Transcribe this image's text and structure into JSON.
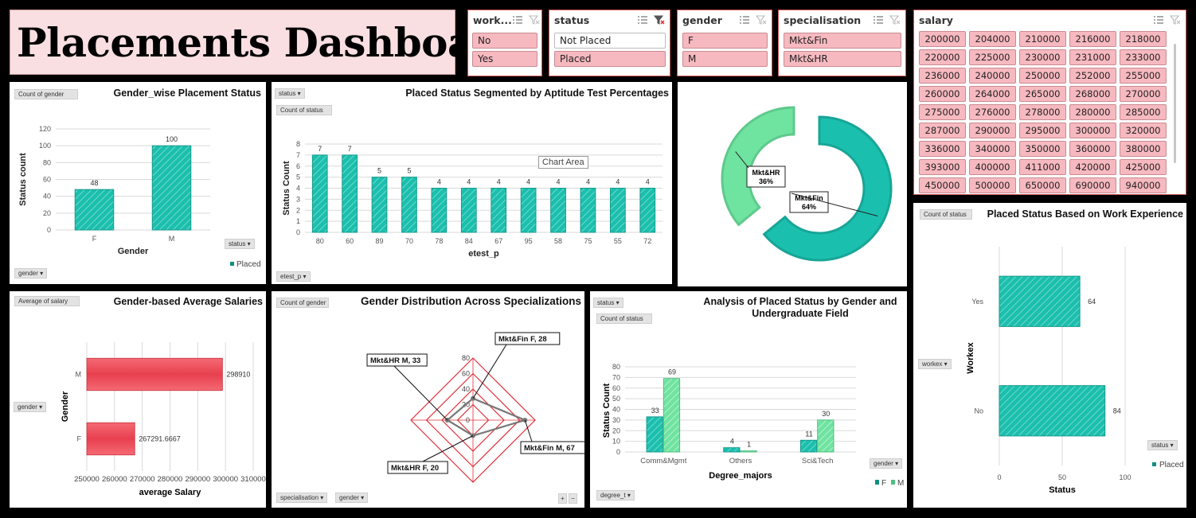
{
  "dashboard": {
    "title": "Placements Dashboard"
  },
  "colors": {
    "teal": "#1bbfad",
    "light_green": "#6fe3a0",
    "red": "#e8404e",
    "slicer_pink": "#f7b9c0",
    "grid": "#d9d9d9"
  },
  "slicers": {
    "workex": {
      "label": "work...",
      "items": [
        "No",
        "Yes"
      ]
    },
    "status": {
      "label": "status",
      "items": [
        "Not Placed",
        "Placed"
      ]
    },
    "gender": {
      "label": "gender",
      "items": [
        "F",
        "M"
      ]
    },
    "specialisation": {
      "label": "specialisation",
      "items": [
        "Mkt&Fin",
        "Mkt&HR"
      ]
    },
    "salary": {
      "label": "salary",
      "items": [
        "200000",
        "204000",
        "210000",
        "216000",
        "218000",
        "220000",
        "225000",
        "230000",
        "231000",
        "233000",
        "236000",
        "240000",
        "250000",
        "252000",
        "255000",
        "260000",
        "264000",
        "265000",
        "268000",
        "270000",
        "275000",
        "276000",
        "278000",
        "280000",
        "285000",
        "287000",
        "290000",
        "295000",
        "300000",
        "320000",
        "336000",
        "340000",
        "350000",
        "360000",
        "380000",
        "393000",
        "400000",
        "411000",
        "420000",
        "425000",
        "450000",
        "500000",
        "650000",
        "690000",
        "940000"
      ]
    }
  },
  "charts": {
    "gender_status": {
      "title": "Gender_wise Placement Status",
      "value_tag": "Count of gender",
      "filter_tag": "status",
      "axis_tag": "gender",
      "chart_data": {
        "type": "bar",
        "categories": [
          "F",
          "M"
        ],
        "values": [
          48,
          100
        ],
        "xlabel": "Gender",
        "ylabel": "Status count",
        "ylim": [
          0,
          120
        ],
        "yticks": [
          "0",
          "20",
          "40",
          "60",
          "80",
          "100",
          "120"
        ],
        "legend": "Placed"
      }
    },
    "aptitude": {
      "title": "Placed Status Segmented by Aptitude Test Percentages",
      "filter_tag": "status",
      "value_tag": "Count of status",
      "axis_tag": "etest_p",
      "tooltip": "Chart Area",
      "chart_data": {
        "type": "bar",
        "categories": [
          "80",
          "60",
          "89",
          "70",
          "78",
          "84",
          "67",
          "95",
          "58",
          "75",
          "55",
          "72"
        ],
        "values": [
          7,
          7,
          5,
          5,
          4,
          4,
          4,
          4,
          4,
          4,
          4,
          4
        ],
        "xlabel": "etest_p",
        "ylabel": "Status Count",
        "ylim": [
          0,
          8
        ],
        "yticks": [
          "0",
          "1",
          "2",
          "3",
          "4",
          "5",
          "6",
          "7",
          "8"
        ]
      }
    },
    "specialisation_donut": {
      "chart_data": {
        "type": "pie",
        "categories": [
          "Mkt&HR",
          "Mkt&Fin"
        ],
        "values": [
          36,
          64
        ],
        "labels": [
          "36%",
          "64%"
        ]
      }
    },
    "workex_status": {
      "title": "Placed Status Based on Work Experience",
      "value_tag": "Count of status",
      "axis_tag": "workex",
      "filter_tag": "status",
      "chart_data": {
        "type": "bar",
        "orientation": "horizontal",
        "categories": [
          "Yes",
          "No"
        ],
        "values": [
          64,
          84
        ],
        "xlabel": "Status",
        "ylabel": "Workex",
        "xlim": [
          0,
          100
        ],
        "xticks": [
          "0",
          "50",
          "100"
        ],
        "legend": "Placed"
      }
    },
    "avg_salary": {
      "title": "Gender-based Average Salaries",
      "value_tag": "Average of salary",
      "axis_tag": "gender",
      "chart_data": {
        "type": "bar",
        "orientation": "horizontal",
        "categories": [
          "M",
          "F"
        ],
        "values": [
          298910,
          267291.6667
        ],
        "value_labels": [
          "298910",
          "267291.6667"
        ],
        "xlabel": "average Salary",
        "ylabel": "Gender",
        "xlim": [
          250000,
          310000
        ],
        "xticks": [
          "250000",
          "260000",
          "270000",
          "280000",
          "290000",
          "300000",
          "310000"
        ]
      }
    },
    "gender_spec": {
      "title": "Gender Distribution Across Specializations",
      "value_tag": "Count of gender",
      "axis_tag_1": "specialisation",
      "axis_tag_2": "gender",
      "zoom": [
        "+",
        "−"
      ],
      "chart_data": {
        "type": "radar",
        "categories": [
          "Mkt&Fin F",
          "Mkt&Fin M",
          "Mkt&HR F",
          "Mkt&HR M"
        ],
        "values": [
          28,
          67,
          20,
          33
        ],
        "labels": [
          "Mkt&Fin F, 28",
          "Mkt&Fin M, 67",
          "Mkt&HR F, 20",
          "Mkt&HR M, 33"
        ],
        "rlim": [
          0,
          80
        ],
        "rticks": [
          "0",
          "20",
          "40",
          "60",
          "80"
        ]
      }
    },
    "degree": {
      "title_line1": "Analysis of Placed Status by Gender and",
      "title_line2": "Undergraduate Field",
      "filter_tag": "status",
      "value_tag": "Count of status",
      "axis_tag": "degree_t",
      "legend_tag": "gender",
      "chart_data": {
        "type": "bar",
        "categories": [
          "Comm&Mgmt",
          "Others",
          "Sci&Tech"
        ],
        "series": [
          {
            "name": "F",
            "values": [
              33,
              4,
              11
            ]
          },
          {
            "name": "M",
            "values": [
              69,
              1,
              30
            ]
          }
        ],
        "xlabel": "Degree_majors",
        "ylabel": "Status Count",
        "ylim": [
          0,
          80
        ],
        "yticks": [
          "0",
          "10",
          "20",
          "30",
          "40",
          "50",
          "60",
          "70",
          "80"
        ]
      }
    }
  }
}
